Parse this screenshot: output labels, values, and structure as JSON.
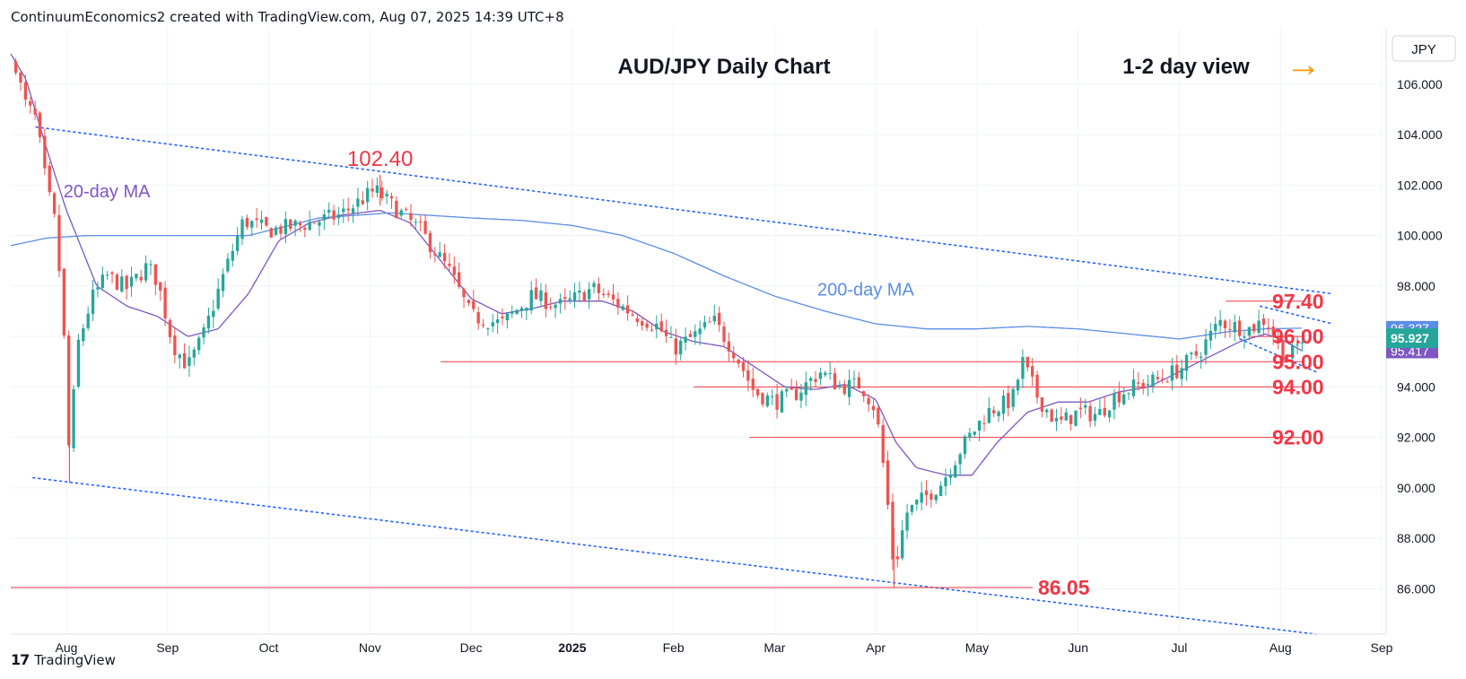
{
  "header": {
    "credit": "ContinuumEconomics2 created with TradingView.com, Aug 07, 2025 14:39 UTC+8"
  },
  "footer": {
    "brand": "TradingView",
    "logo_text": "17"
  },
  "chart_data": {
    "type": "candlestick",
    "title": "AUD/JPY Daily Chart",
    "view_label": "1-2 day view",
    "view_arrow": "→",
    "currency_label": "JPY",
    "colors": {
      "up": "#26a69a",
      "down": "#ef5350",
      "ma20": "#7e57c2",
      "ma200": "#5b8ee6",
      "level": "#f23645",
      "trend": "#2962ff",
      "price": "#26a69a"
    },
    "ylim": [
      84.2,
      108.2
    ],
    "y_ticks": [
      "86.000",
      "88.000",
      "90.000",
      "92.000",
      "94.000",
      "96.000",
      "98.000",
      "100.000",
      "102.000",
      "104.000",
      "106.000"
    ],
    "x_ticks": [
      {
        "label": "Aug",
        "month": 1
      },
      {
        "label": "Sep",
        "month": 2
      },
      {
        "label": "Oct",
        "month": 3
      },
      {
        "label": "Nov",
        "month": 4
      },
      {
        "label": "Dec",
        "month": 5
      },
      {
        "label": "2025",
        "month": 6
      },
      {
        "label": "Feb",
        "month": 7
      },
      {
        "label": "Mar",
        "month": 8
      },
      {
        "label": "Apr",
        "month": 9
      },
      {
        "label": "May",
        "month": 10
      },
      {
        "label": "Jun",
        "month": 11
      },
      {
        "label": "Jul",
        "month": 12
      },
      {
        "label": "Aug",
        "month": 13
      },
      {
        "label": "Sep",
        "month": 14
      }
    ],
    "x_range_months": [
      0.45,
      14.0
    ],
    "series_anchors": [
      [
        0.5,
        106.8
      ],
      [
        0.58,
        105.3
      ],
      [
        0.7,
        104.6
      ],
      [
        0.8,
        102.0
      ],
      [
        0.9,
        100.3
      ],
      [
        1.0,
        94.5
      ],
      [
        1.03,
        90.9
      ],
      [
        1.1,
        95.5
      ],
      [
        1.25,
        97.5
      ],
      [
        1.4,
        98.4
      ],
      [
        1.6,
        97.9
      ],
      [
        1.8,
        98.8
      ],
      [
        1.9,
        98.2
      ],
      [
        2.05,
        95.7
      ],
      [
        2.2,
        94.8
      ],
      [
        2.35,
        96.0
      ],
      [
        2.55,
        98.4
      ],
      [
        2.75,
        100.6
      ],
      [
        3.0,
        100.2
      ],
      [
        3.3,
        100.4
      ],
      [
        3.7,
        100.8
      ],
      [
        4.05,
        101.8
      ],
      [
        4.3,
        100.9
      ],
      [
        4.5,
        100.2
      ],
      [
        4.8,
        98.5
      ],
      [
        5.0,
        96.8
      ],
      [
        5.3,
        96.5
      ],
      [
        5.6,
        97.6
      ],
      [
        5.9,
        97.2
      ],
      [
        6.2,
        97.9
      ],
      [
        6.4,
        97.4
      ],
      [
        6.6,
        96.9
      ],
      [
        6.85,
        96.4
      ],
      [
        7.0,
        95.5
      ],
      [
        7.2,
        96.0
      ],
      [
        7.4,
        96.6
      ],
      [
        7.6,
        95.4
      ],
      [
        7.8,
        93.8
      ],
      [
        8.0,
        93.4
      ],
      [
        8.2,
        93.7
      ],
      [
        8.45,
        94.6
      ],
      [
        8.65,
        94.0
      ],
      [
        8.85,
        94.1
      ],
      [
        9.0,
        93.1
      ],
      [
        9.1,
        90.1
      ],
      [
        9.18,
        86.7
      ],
      [
        9.3,
        89.0
      ],
      [
        9.45,
        89.5
      ],
      [
        9.65,
        90.2
      ],
      [
        9.85,
        91.6
      ],
      [
        10.1,
        93.0
      ],
      [
        10.35,
        93.5
      ],
      [
        10.45,
        95.0
      ],
      [
        10.6,
        93.6
      ],
      [
        10.8,
        92.5
      ],
      [
        11.0,
        93.0
      ],
      [
        11.2,
        92.9
      ],
      [
        11.35,
        93.6
      ],
      [
        11.55,
        94.0
      ],
      [
        11.8,
        94.3
      ],
      [
        12.0,
        94.7
      ],
      [
        12.2,
        95.4
      ],
      [
        12.4,
        96.6
      ],
      [
        12.55,
        96.4
      ],
      [
        12.7,
        96.3
      ],
      [
        12.85,
        96.7
      ],
      [
        13.0,
        95.5
      ],
      [
        13.08,
        95.1
      ],
      [
        13.22,
        95.93
      ]
    ],
    "series": [
      {
        "name": "20-day MA",
        "label": "20-day MA",
        "anchors": [
          [
            0.45,
            107.2
          ],
          [
            0.6,
            106.2
          ],
          [
            0.8,
            103.5
          ],
          [
            1.0,
            101.0
          ],
          [
            1.3,
            98.0
          ],
          [
            1.6,
            97.2
          ],
          [
            1.9,
            96.8
          ],
          [
            2.2,
            96.0
          ],
          [
            2.5,
            96.3
          ],
          [
            2.8,
            97.7
          ],
          [
            3.1,
            99.8
          ],
          [
            3.4,
            100.5
          ],
          [
            3.7,
            100.8
          ],
          [
            4.1,
            101.0
          ],
          [
            4.4,
            100.5
          ],
          [
            4.7,
            99.0
          ],
          [
            5.0,
            97.5
          ],
          [
            5.3,
            96.9
          ],
          [
            5.6,
            97.1
          ],
          [
            5.9,
            97.4
          ],
          [
            6.3,
            97.4
          ],
          [
            6.6,
            97.0
          ],
          [
            6.9,
            96.2
          ],
          [
            7.2,
            95.8
          ],
          [
            7.5,
            95.6
          ],
          [
            7.8,
            94.8
          ],
          [
            8.1,
            94.0
          ],
          [
            8.4,
            93.9
          ],
          [
            8.7,
            94.1
          ],
          [
            9.0,
            93.5
          ],
          [
            9.2,
            91.8
          ],
          [
            9.4,
            90.8
          ],
          [
            9.7,
            90.5
          ],
          [
            9.95,
            90.5
          ],
          [
            10.2,
            91.8
          ],
          [
            10.5,
            93.0
          ],
          [
            10.8,
            93.4
          ],
          [
            11.1,
            93.4
          ],
          [
            11.4,
            93.8
          ],
          [
            11.7,
            94.0
          ],
          [
            12.0,
            94.6
          ],
          [
            12.3,
            95.2
          ],
          [
            12.6,
            95.8
          ],
          [
            12.85,
            96.1
          ],
          [
            13.0,
            95.9
          ],
          [
            13.22,
            95.42
          ]
        ]
      },
      {
        "name": "200-day MA",
        "label": "200-day MA",
        "anchors": [
          [
            0.45,
            99.6
          ],
          [
            0.8,
            99.9
          ],
          [
            1.2,
            100.0
          ],
          [
            2.0,
            100.0
          ],
          [
            2.8,
            100.0
          ],
          [
            3.5,
            100.7
          ],
          [
            4.2,
            100.9
          ],
          [
            5.0,
            100.7
          ],
          [
            5.5,
            100.6
          ],
          [
            6.0,
            100.4
          ],
          [
            6.5,
            100.0
          ],
          [
            7.0,
            99.3
          ],
          [
            7.5,
            98.4
          ],
          [
            8.0,
            97.6
          ],
          [
            8.5,
            97.0
          ],
          [
            9.0,
            96.5
          ],
          [
            9.5,
            96.3
          ],
          [
            10.0,
            96.3
          ],
          [
            10.5,
            96.4
          ],
          [
            11.0,
            96.3
          ],
          [
            11.5,
            96.1
          ],
          [
            12.0,
            95.9
          ],
          [
            12.5,
            96.2
          ],
          [
            12.85,
            96.3
          ],
          [
            13.22,
            96.33
          ]
        ]
      }
    ],
    "levels": [
      {
        "label": "97.40",
        "value": 97.4,
        "x_start": 12.46,
        "x_end": 13.22
      },
      {
        "label": "96.00",
        "value": 96.0,
        "x_start": 12.7,
        "x_end": 13.22
      },
      {
        "label": "95.00",
        "value": 95.0,
        "x_start": 4.7,
        "x_end": 13.22
      },
      {
        "label": "94.00",
        "value": 94.0,
        "x_start": 7.2,
        "x_end": 13.22
      },
      {
        "label": "92.00",
        "value": 92.0,
        "x_start": 7.75,
        "x_end": 13.22
      },
      {
        "label": "86.05",
        "value": 86.05,
        "x_start": 0.45,
        "x_end": 10.55
      }
    ],
    "trendlines": [
      {
        "name": "upper-channel",
        "points": [
          [
            0.7,
            104.3
          ],
          [
            13.5,
            97.7
          ]
        ]
      },
      {
        "name": "lower-channel",
        "points": [
          [
            0.67,
            90.4
          ],
          [
            13.35,
            84.2
          ]
        ]
      },
      {
        "name": "short-resistance",
        "points": [
          [
            12.8,
            97.2
          ],
          [
            13.52,
            96.5
          ]
        ]
      },
      {
        "name": "short-support",
        "points": [
          [
            12.6,
            95.9
          ],
          [
            13.35,
            94.6
          ]
        ]
      }
    ],
    "annotations": [
      {
        "label": "102.40",
        "x": 4.1,
        "y": 102.4
      },
      {
        "label": "20-day MA",
        "x": 1.4,
        "y": 101.8
      },
      {
        "label": "200-day MA",
        "x": 8.9,
        "y": 97.9
      }
    ],
    "price_badges": [
      {
        "label": "96.327",
        "value": 96.33,
        "bg": "#5b8ee6"
      },
      {
        "label": "95.417",
        "value": 95.42,
        "bg": "#7e57c2"
      },
      {
        "label": "95.927",
        "value": 95.93,
        "bg": "#26a69a"
      }
    ]
  }
}
